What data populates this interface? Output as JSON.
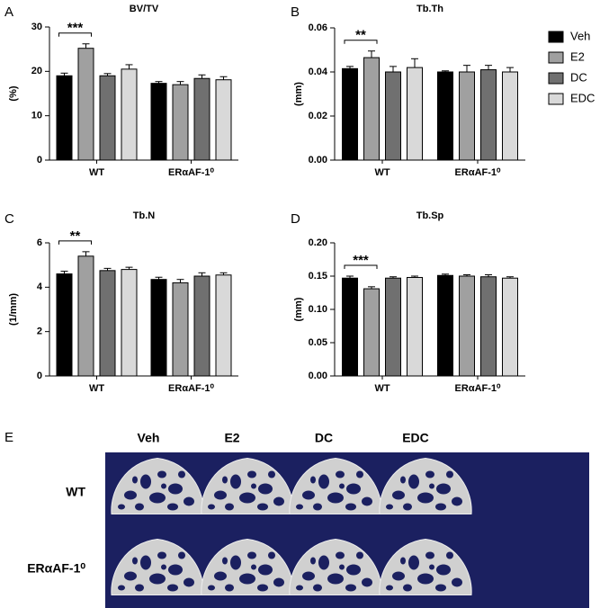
{
  "chart_data": [
    {
      "type": "bar",
      "panel": "A",
      "title": "BV/TV",
      "y_label": "(%)",
      "categories": [
        "WT",
        "ERαAF-1⁰"
      ],
      "series": [
        {
          "color": "#000000",
          "values": [
            19,
            17.3
          ],
          "errors": [
            0.6,
            0.4
          ]
        },
        {
          "color": "#a0a0a0",
          "values": [
            25.2,
            17
          ],
          "errors": [
            1,
            0.7
          ]
        },
        {
          "color": "#707070",
          "values": [
            19,
            18.4
          ],
          "errors": [
            0.5,
            0.8
          ]
        },
        {
          "color": "#d9d9d9",
          "values": [
            20.5,
            18.1
          ],
          "errors": [
            1,
            0.7
          ]
        }
      ],
      "ylim": [
        0,
        30
      ],
      "yticks": [
        0,
        10,
        20,
        30
      ],
      "annotations": [
        {
          "text": "***"
        }
      ]
    },
    {
      "type": "bar",
      "panel": "B",
      "title": "Tb.Th",
      "y_label": "(mm)",
      "categories": [
        "WT",
        "ERαAF-1⁰"
      ],
      "series": [
        {
          "name": "Veh",
          "color": "#000000",
          "values": [
            0.0415,
            0.04
          ],
          "errors": [
            0.001,
            0.0005
          ]
        },
        {
          "name": "E2",
          "color": "#a0a0a0",
          "values": [
            0.0465,
            0.04
          ],
          "errors": [
            0.003,
            0.003
          ]
        },
        {
          "name": "DC",
          "color": "#707070",
          "values": [
            0.04,
            0.041
          ],
          "errors": [
            0.0025,
            0.002
          ]
        },
        {
          "name": "EDC",
          "color": "#d9d9d9",
          "values": [
            0.042,
            0.04
          ],
          "errors": [
            0.004,
            0.002
          ]
        }
      ],
      "ylim": [
        0,
        0.06
      ],
      "yticks": [
        {
          "value": 0,
          "label": "0.00"
        },
        {
          "value": 0.02,
          "label": "0.02"
        },
        {
          "value": 0.04,
          "label": "0.04"
        },
        {
          "value": 0.06,
          "label": "0.06"
        }
      ],
      "annotations": [
        {
          "text": "**"
        }
      ],
      "legend": "right"
    },
    {
      "type": "bar",
      "panel": "C",
      "title": "Tb.N",
      "y_label": "(1/mm)",
      "categories": [
        "WT",
        "ERαAF-1⁰"
      ],
      "series": [
        {
          "color": "#000000",
          "values": [
            4.6,
            4.35
          ],
          "errors": [
            0.12,
            0.1
          ]
        },
        {
          "color": "#a0a0a0",
          "values": [
            5.4,
            4.2
          ],
          "errors": [
            0.2,
            0.15
          ]
        },
        {
          "color": "#707070",
          "values": [
            4.75,
            4.5
          ],
          "errors": [
            0.1,
            0.15
          ]
        },
        {
          "color": "#d9d9d9",
          "values": [
            4.8,
            4.55
          ],
          "errors": [
            0.1,
            0.1
          ]
        }
      ],
      "ylim": [
        0,
        6
      ],
      "yticks": [
        0,
        2,
        4,
        6
      ],
      "annotations": [
        {
          "text": "**"
        }
      ]
    },
    {
      "type": "bar",
      "panel": "D",
      "title": "Tb.Sp",
      "y_label": "(mm)",
      "categories": [
        "WT",
        "ERαAF-1⁰"
      ],
      "series": [
        {
          "color": "#000000",
          "values": [
            0.147,
            0.151
          ],
          "errors": [
            0.003,
            0.002
          ]
        },
        {
          "color": "#a0a0a0",
          "values": [
            0.131,
            0.15
          ],
          "errors": [
            0.003,
            0.002
          ]
        },
        {
          "color": "#707070",
          "values": [
            0.147,
            0.149
          ],
          "errors": [
            0.002,
            0.003
          ]
        },
        {
          "color": "#d9d9d9",
          "values": [
            0.148,
            0.147
          ],
          "errors": [
            0.002,
            0.002
          ]
        }
      ],
      "ylim": [
        0,
        0.2
      ],
      "yticks": [
        {
          "value": 0,
          "label": "0.00"
        },
        {
          "value": 0.05,
          "label": "0.05"
        },
        {
          "value": 0.1,
          "label": "0.10"
        },
        {
          "value": 0.15,
          "label": "0.15"
        },
        {
          "value": 0.2,
          "label": "0.20"
        }
      ],
      "annotations": [
        {
          "text": "***"
        }
      ]
    }
  ],
  "image_panel": {
    "label": "E",
    "columns": [
      "Veh",
      "E2",
      "DC",
      "EDC"
    ],
    "rows": [
      "WT",
      "ERαAF-1⁰"
    ]
  }
}
